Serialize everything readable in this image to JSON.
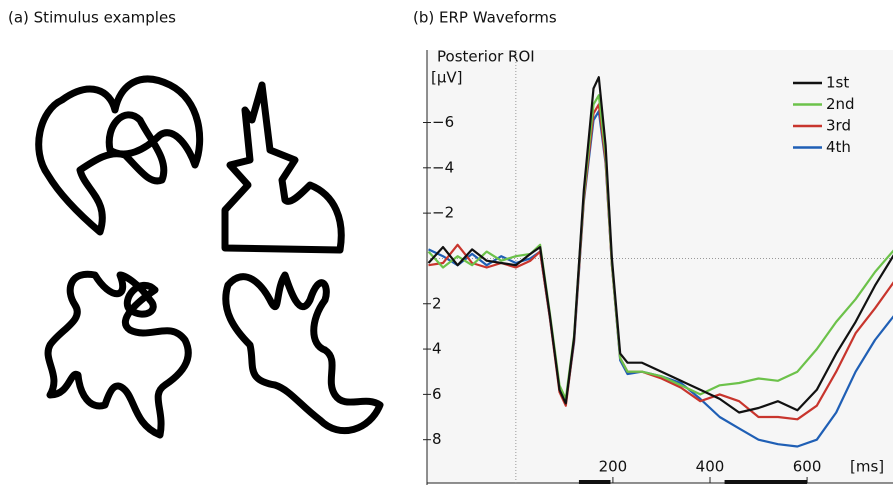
{
  "panel_a": {
    "title": "(a)   Stimulus examples"
  },
  "chart_data": {
    "type": "line",
    "title": "(b)   ERP Waveforms",
    "subtitle": "Posterior ROI",
    "y_label": "[μV]",
    "x_label": "[ms]",
    "x": [
      -180,
      -150,
      -120,
      -90,
      -60,
      -30,
      0,
      30,
      50,
      70,
      90,
      103,
      120,
      140,
      160,
      171,
      185,
      198,
      215,
      230,
      260,
      300,
      340,
      380,
      420,
      460,
      500,
      540,
      580,
      620,
      660,
      700,
      740,
      780
    ],
    "series": [
      {
        "name": "1st",
        "color": "#111111",
        "values": [
          0.2,
          -0.5,
          0.3,
          -0.4,
          0.1,
          0.2,
          0.3,
          -0.2,
          -0.5,
          2.5,
          5.8,
          6.4,
          3.5,
          -3,
          -7.5,
          -8.0,
          -5,
          0,
          4.2,
          4.6,
          4.6,
          5.0,
          5.4,
          5.8,
          6.2,
          6.8,
          6.6,
          6.3,
          6.7,
          5.8,
          4.2,
          2.8,
          1.2,
          -0.2
        ]
      },
      {
        "name": "2nd",
        "color": "#6cc24a",
        "values": [
          -0.3,
          0.4,
          -0.1,
          0.3,
          -0.3,
          0.1,
          -0.1,
          -0.2,
          -0.6,
          2.4,
          5.6,
          6.2,
          3.4,
          -2.8,
          -6.8,
          -7.2,
          -4.6,
          0.2,
          4.4,
          5.0,
          5.0,
          5.2,
          5.6,
          6.0,
          5.6,
          5.5,
          5.3,
          5.4,
          5.0,
          4.0,
          2.8,
          1.8,
          0.6,
          -0.4
        ]
      },
      {
        "name": "3rd",
        "color": "#c8352d",
        "values": [
          0.3,
          0.2,
          -0.6,
          0.2,
          0.4,
          0.2,
          0.4,
          0.1,
          -0.3,
          2.6,
          5.9,
          6.5,
          3.6,
          -2.6,
          -6.4,
          -6.8,
          -4.3,
          0.3,
          4.4,
          5.0,
          5.0,
          5.3,
          5.7,
          6.3,
          6.0,
          6.3,
          7.0,
          7.0,
          7.1,
          6.5,
          5.0,
          3.3,
          2.2,
          1.0
        ]
      },
      {
        "name": "4th",
        "color": "#1f5fb5",
        "values": [
          -0.4,
          -0.1,
          0.3,
          -0.2,
          0.3,
          -0.1,
          0.2,
          0,
          -0.3,
          2.6,
          5.8,
          6.4,
          3.7,
          -2.5,
          -6.1,
          -6.5,
          -4.2,
          0.3,
          4.5,
          5.1,
          5.0,
          5.2,
          5.5,
          6.2,
          7.0,
          7.5,
          8.0,
          8.2,
          8.3,
          8.0,
          6.8,
          5.0,
          3.6,
          2.5
        ]
      }
    ],
    "xlim": [
      -183,
      777
    ],
    "ylim": [
      -9.2,
      10
    ],
    "inverted": true,
    "xticks": [
      200,
      400,
      600
    ],
    "yticks": [
      {
        "value": -6,
        "label": "−6"
      },
      {
        "value": -4,
        "label": "−4"
      },
      {
        "value": -2,
        "label": "−2"
      },
      2,
      4,
      6,
      8
    ],
    "zero_lines": true,
    "windows": [
      [
        130,
        195
      ],
      [
        430,
        600
      ]
    ],
    "legend": "upper right"
  }
}
